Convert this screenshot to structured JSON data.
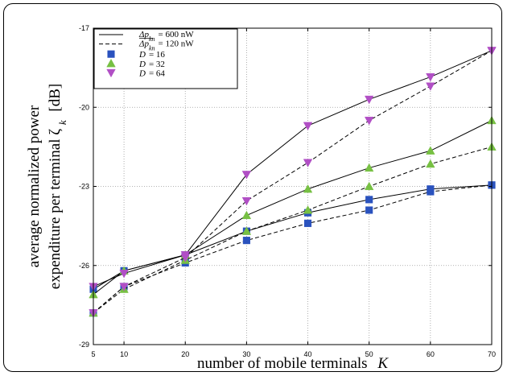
{
  "chart_data": {
    "type": "line",
    "title": "",
    "xlabel": "number of mobile terminals",
    "xlabel_symbol": "K",
    "ylabel_line1": "average normalized power",
    "ylabel_line2": "expenditure per terminal ζ",
    "ylabel_sub": "k",
    "ylabel_unit": "[dB]",
    "xlim": [
      5,
      70
    ],
    "ylim": [
      -29,
      -17
    ],
    "xticks": [
      5,
      10,
      20,
      30,
      40,
      50,
      60,
      70
    ],
    "yticks": [
      -29,
      -26,
      -23,
      -20,
      -17
    ],
    "grid": true,
    "legend_position": "top-left",
    "legend_line_entries": [
      {
        "style": "solid",
        "label": "Δp",
        "sub": "kn",
        "value": "= 600 nW"
      },
      {
        "style": "dashed",
        "label": "Δp",
        "sub": "kn",
        "value": "= 120 nW"
      }
    ],
    "x": [
      5,
      10,
      20,
      30,
      40,
      50,
      60,
      70
    ],
    "series": [
      {
        "name": "D = 16",
        "marker": "square",
        "color": "#2a52be",
        "dash": "solid",
        "values": [
          -26.9,
          -26.2,
          -25.6,
          -24.7,
          -24.0,
          -23.5,
          -23.1,
          -22.95
        ]
      },
      {
        "name": "D = 16",
        "marker": "square",
        "color": "#2a52be",
        "dash": "dashed",
        "values": [
          -27.8,
          -26.8,
          -25.9,
          -25.05,
          -24.4,
          -23.9,
          -23.2,
          -22.95
        ]
      },
      {
        "name": "D = 32",
        "marker": "triangle-up",
        "color": "#77c043",
        "dash": "solid",
        "values": [
          -27.1,
          -26.2,
          -25.6,
          -24.1,
          -23.1,
          -22.3,
          -21.65,
          -20.5
        ]
      },
      {
        "name": "D = 32",
        "marker": "triangle-up",
        "color": "#77c043",
        "dash": "dashed",
        "values": [
          -27.8,
          -26.9,
          -25.8,
          -24.7,
          -23.9,
          -23.0,
          -22.15,
          -21.5
        ]
      },
      {
        "name": "D = 64",
        "marker": "triangle-down",
        "color": "#b14fc5",
        "dash": "solid",
        "values": [
          -26.8,
          -26.3,
          -25.6,
          -22.55,
          -20.7,
          -19.7,
          -18.85,
          -17.85
        ]
      },
      {
        "name": "D = 64",
        "marker": "triangle-down",
        "color": "#b14fc5",
        "dash": "dashed",
        "values": [
          -27.8,
          -26.8,
          -25.7,
          -23.55,
          -22.1,
          -20.5,
          -19.2,
          -17.85
        ]
      }
    ],
    "legend_marker_entries": [
      {
        "d_label": "D",
        "d_value": "= 16",
        "marker": "square",
        "color": "#2a52be"
      },
      {
        "d_label": "D",
        "d_value": "= 32",
        "marker": "triangle-up",
        "color": "#77c043"
      },
      {
        "d_label": "D",
        "d_value": "= 64",
        "marker": "triangle-down",
        "color": "#b14fc5"
      }
    ]
  }
}
